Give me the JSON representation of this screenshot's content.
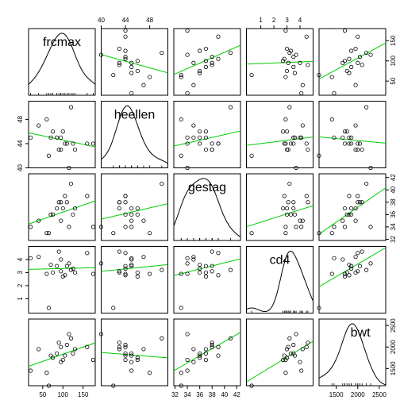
{
  "chart_data": {
    "type": "scatter",
    "variables": [
      {
        "name": "frcmax",
        "label": "frcmax",
        "ticks": [
          50,
          100,
          150
        ],
        "lim": [
          15,
          180
        ],
        "label_pos": "top-center"
      },
      {
        "name": "heellen",
        "label": "heellen",
        "ticks": [
          40,
          44,
          48
        ],
        "lim": [
          40,
          51
        ],
        "label_pos": "top-center"
      },
      {
        "name": "gestag",
        "label": "gestag",
        "ticks": [
          32,
          34,
          36,
          38,
          40,
          42
        ],
        "lim": [
          31.8,
          42.6
        ],
        "label_pos": "top-center"
      },
      {
        "name": "cd4",
        "label": "cd4",
        "ticks": [
          1,
          2,
          3,
          4
        ],
        "lim": [
          -0.1,
          5.0
        ],
        "label_pos": "top-center"
      },
      {
        "name": "bwt",
        "label": "bwt",
        "ticks": [
          1500,
          2000,
          2500
        ],
        "lim": [
          1100,
          2650
        ],
        "label_pos": "top-right"
      }
    ],
    "data": {
      "frcmax": [
        75,
        95,
        40,
        175,
        110,
        120,
        20,
        100,
        85,
        105,
        160,
        125,
        90,
        60,
        130,
        65,
        95,
        70,
        115
      ],
      "heellen": [
        46,
        43,
        47,
        44,
        44,
        50,
        45,
        46,
        45,
        44,
        44,
        44,
        43,
        48,
        43,
        42,
        45,
        45,
        40
      ],
      "gestag": [
        36,
        38,
        35,
        34,
        38,
        41,
        34,
        37,
        37,
        39,
        39,
        36,
        38,
        33,
        37,
        33,
        35,
        36,
        34
      ],
      "cd4": [
        3.0,
        3.1,
        4.2,
        2.9,
        3.5,
        3.2,
        4.1,
        2.7,
        3.5,
        2.8,
        4.5,
        3.3,
        4.6,
        2.9,
        3.0,
        0.3,
        4.0,
        3.6,
        3.7
      ],
      "bwt": [
        1750,
        2000,
        1950,
        1700,
        2050,
        2200,
        1450,
        1700,
        1850,
        1800,
        2000,
        1850,
        2100,
        1400,
        1950,
        1100,
        1650,
        1800,
        2300
      ]
    },
    "diagonal": "density",
    "panels": "scatter with least-squares fit",
    "grid": false
  }
}
